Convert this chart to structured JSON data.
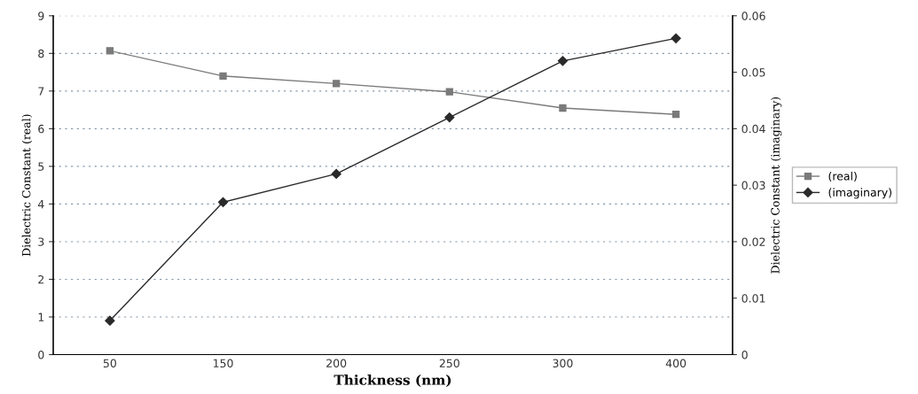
{
  "chart_data": {
    "type": "line",
    "xlabel": "Thickness (nm)",
    "ylabel": "Dielectric Constant (real)",
    "y2label": "Dielectric Constant (imaginary)",
    "categories": [
      "50",
      "150",
      "200",
      "250",
      "300",
      "400"
    ],
    "series": [
      {
        "name": "(real)",
        "color": "#7a7a7a",
        "marker": "square",
        "values": [
          8.07,
          7.4,
          7.2,
          6.98,
          6.55,
          6.38
        ]
      },
      {
        "name": "(imaginary)",
        "color": "#2a2a2a",
        "marker": "diamond",
        "axis": "y2",
        "values": [
          0.006,
          0.027,
          0.032,
          0.042,
          0.052,
          0.056
        ]
      }
    ],
    "ylim": [
      0,
      9
    ],
    "yticks": [
      0,
      1,
      2,
      3,
      4,
      5,
      6,
      7,
      8,
      9
    ],
    "y2lim": [
      0,
      0.06
    ],
    "y2ticks": [
      0,
      0.01,
      0.02,
      0.03,
      0.04,
      0.05,
      0.06
    ],
    "grid": "y",
    "legend": "right",
    "line_style": "solid"
  }
}
